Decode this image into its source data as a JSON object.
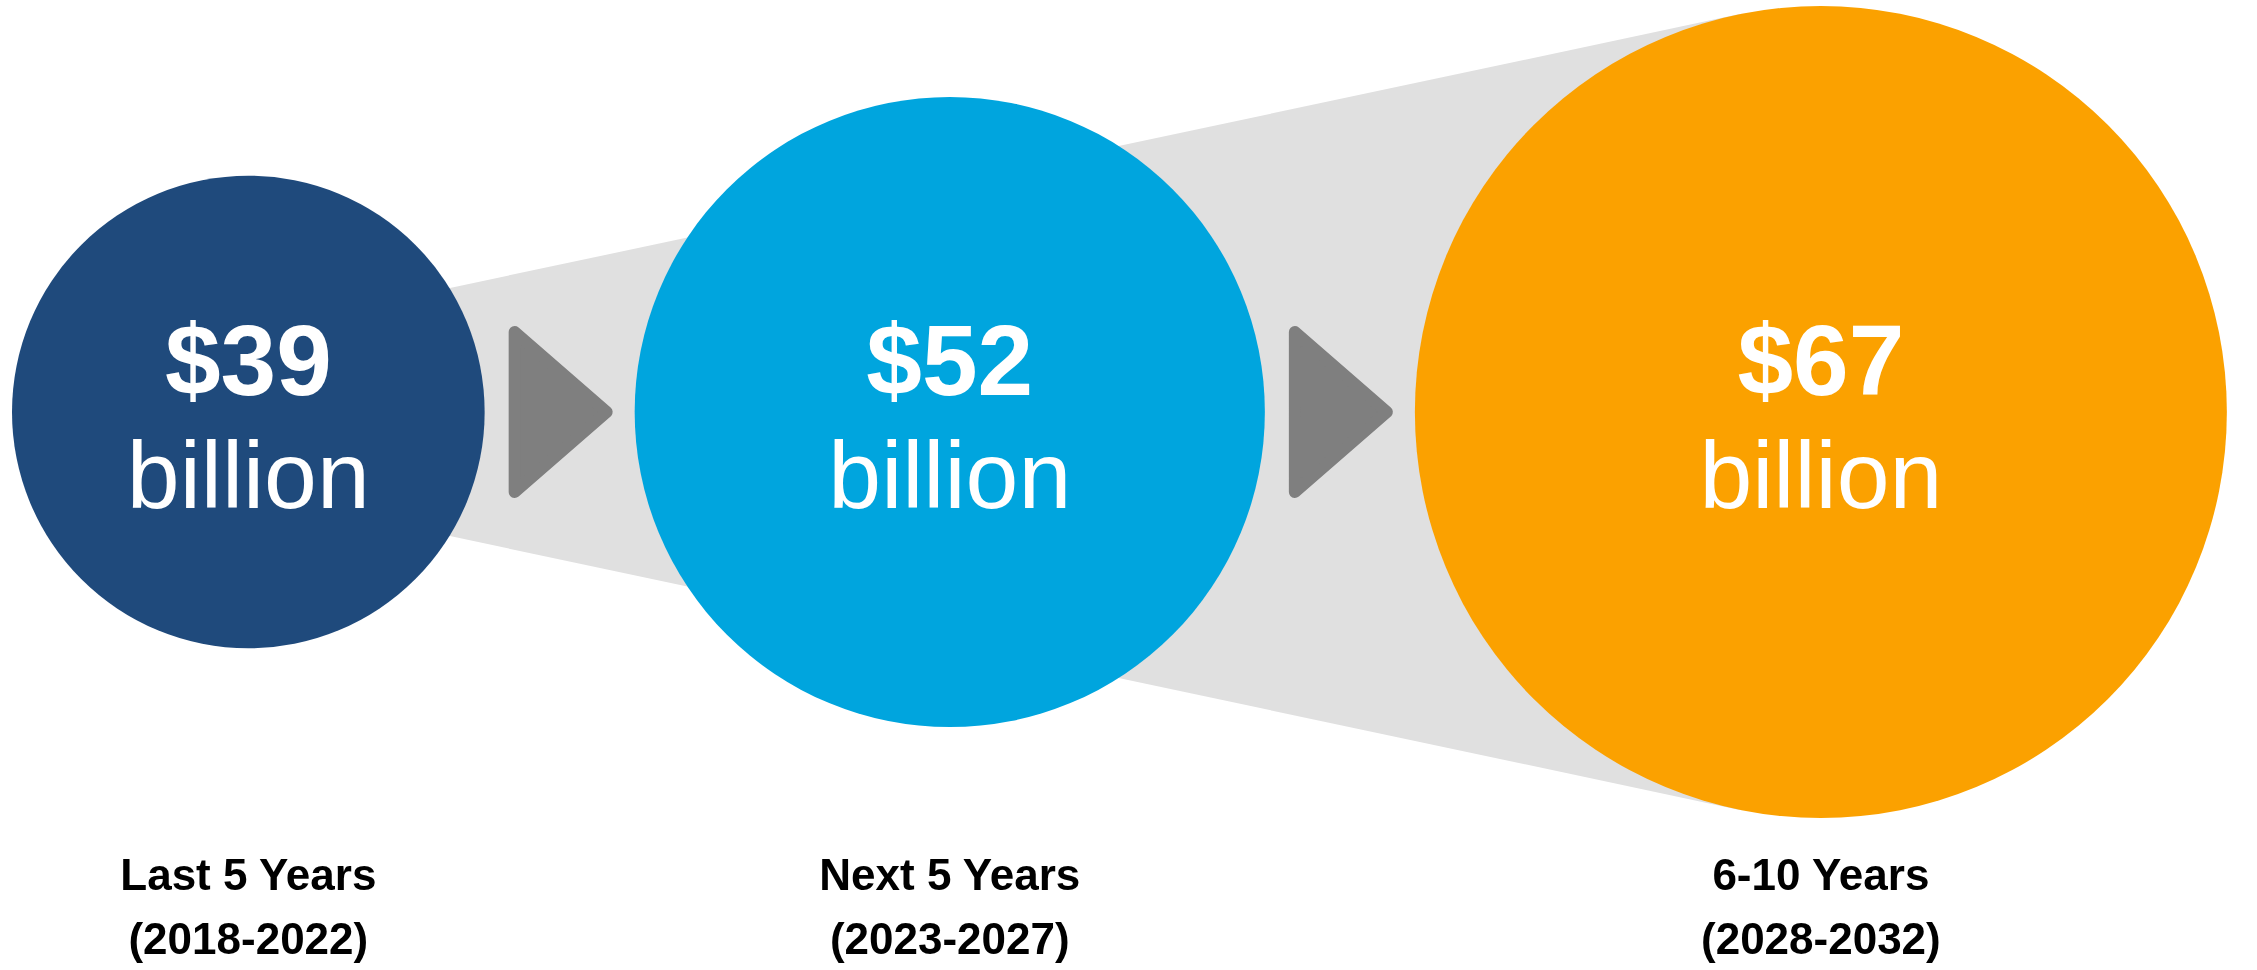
{
  "chart_data": {
    "type": "other",
    "categories": [
      "Last 5 Years\n(2018-2022)",
      "Next 5 Years\n(2023-2027)",
      "6-10 Years\n(2028-2032)"
    ],
    "values": [
      39000000000,
      52000000000,
      67000000000
    ],
    "value_labels": [
      "$39\nbillion",
      "$52\nbillion",
      "$67\nbillion"
    ],
    "colors": [
      "#1f4a7c",
      "#00a5de",
      "#fba100"
    ]
  }
}
